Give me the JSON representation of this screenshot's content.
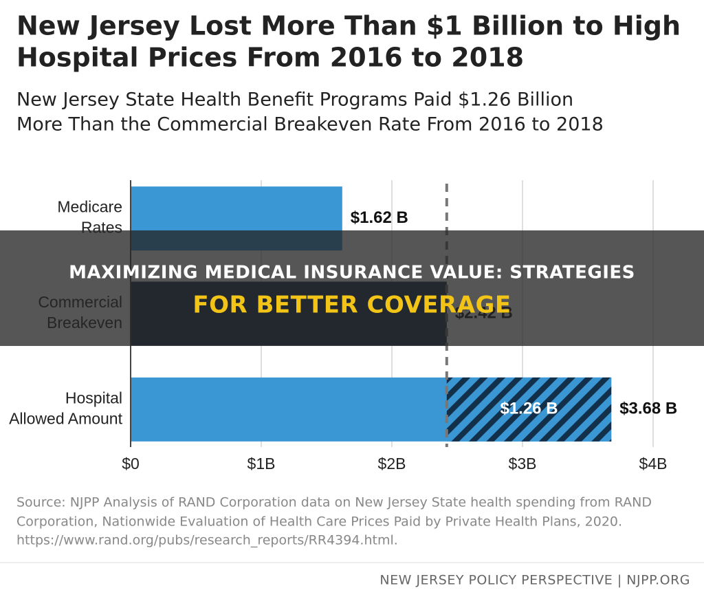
{
  "chart_data": {
    "type": "bar",
    "orientation": "horizontal",
    "title": [
      "New Jersey Lost More Than $1 Billion to High",
      "Hospital Prices From 2016 to 2018"
    ],
    "subtitle": [
      "New Jersey State Health Benefit Programs Paid $1.26 Billion",
      "More Than the Commercial Breakeven Rate From 2016 to 2018"
    ],
    "categories": [
      [
        "Medicare",
        "Rates"
      ],
      [
        "Commercial",
        "Breakeven"
      ],
      [
        "Hospital",
        "Allowed Amount"
      ]
    ],
    "values": [
      1.62,
      2.42,
      3.68
    ],
    "value_labels": [
      "$1.62 B",
      "$2.42 B",
      "$3.68 B"
    ],
    "colors": [
      "#3a97d4",
      "#13304a",
      "#3a97d4"
    ],
    "excess": {
      "value": 1.26,
      "label": "$1.26 B",
      "color": "#13304a"
    },
    "xlim": [
      0,
      4
    ],
    "xticks": [
      {
        "value": 0,
        "label": "$0"
      },
      {
        "value": 1,
        "label": "$1B"
      },
      {
        "value": 2,
        "label": "$2B"
      },
      {
        "value": 3,
        "label": "$3B"
      },
      {
        "value": 4,
        "label": "$4B"
      }
    ],
    "grid": true,
    "source": [
      "Source: NJPP Analysis of RAND Corporation data on New Jersey State health spending from RAND",
      "Corporation, Nationwide Evaluation of Health Care Prices Paid by Private Health Plans, 2020.",
      "https://www.rand.org/pubs/research_reports/RR4394.html."
    ],
    "footer": "NEW JERSEY POLICY PERSPECTIVE | NJPP.ORG"
  },
  "banner": {
    "lines": [
      "MAXIMIZING MEDICAL INSURANCE VALUE: STRATEGIES",
      "FOR BETTER COVERAGE"
    ]
  }
}
